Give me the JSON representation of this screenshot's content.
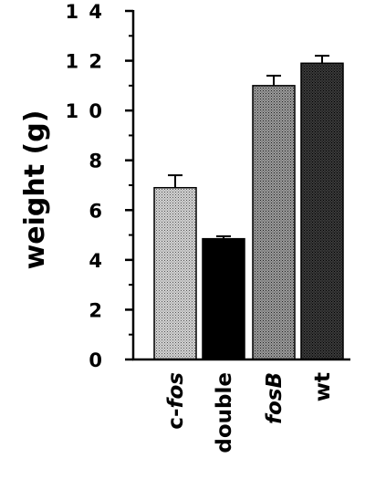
{
  "chart_data": {
    "type": "bar",
    "title": "",
    "xlabel": "",
    "ylabel": "weight  (g)",
    "categories": [
      {
        "text": "c-fos",
        "parts": [
          {
            "t": "c-",
            "italic": false
          },
          {
            "t": "fos",
            "italic": true
          }
        ]
      },
      {
        "text": "double",
        "parts": [
          {
            "t": "double",
            "italic": false
          }
        ]
      },
      {
        "text": "fosB",
        "parts": [
          {
            "t": "fosB",
            "italic": true
          }
        ]
      },
      {
        "text": "wt",
        "parts": [
          {
            "t": "wt",
            "italic": false
          }
        ]
      }
    ],
    "values": [
      6.9,
      4.85,
      11.0,
      11.9
    ],
    "errors": [
      0.5,
      0.1,
      0.4,
      0.3
    ],
    "fills": [
      "light-stipple",
      "black",
      "medium-stipple",
      "dark-stipple"
    ],
    "ylim": [
      0,
      14
    ],
    "yticks": [
      0,
      2,
      4,
      6,
      8,
      10,
      12,
      14
    ],
    "yticklabels": [
      "0",
      "2",
      "4",
      "6",
      "8",
      "1 0",
      "1 2",
      "1 4"
    ],
    "grid": false,
    "legend": "none"
  }
}
